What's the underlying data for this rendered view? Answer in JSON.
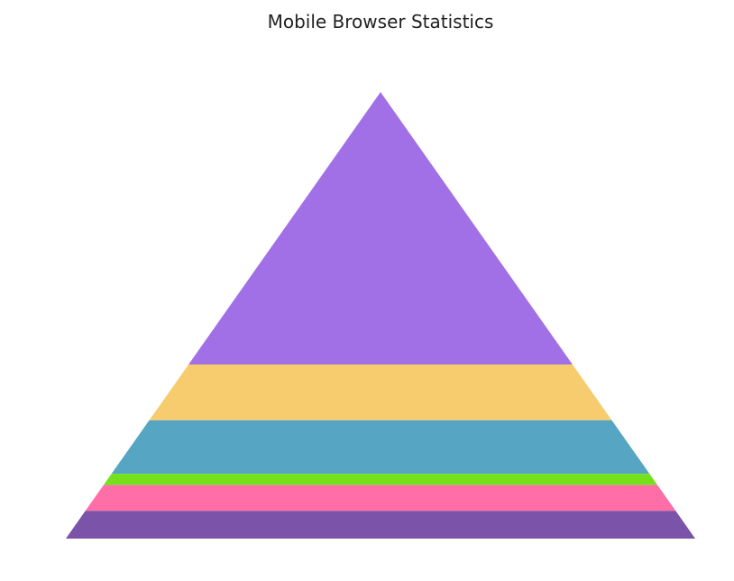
{
  "chart_data": {
    "type": "pyramid",
    "title": "Mobile Browser Statistics",
    "segments": [
      {
        "value": 61,
        "color": "#a170e6"
      },
      {
        "value": 12.5,
        "color": "#f7cc6f"
      },
      {
        "value": 12,
        "color": "#55a5c3"
      },
      {
        "value": 2.5,
        "color": "#75e11a"
      },
      {
        "value": 5.8,
        "color": "#ff6ea6"
      },
      {
        "value": 6.2,
        "color": "#7b54aa"
      }
    ]
  }
}
